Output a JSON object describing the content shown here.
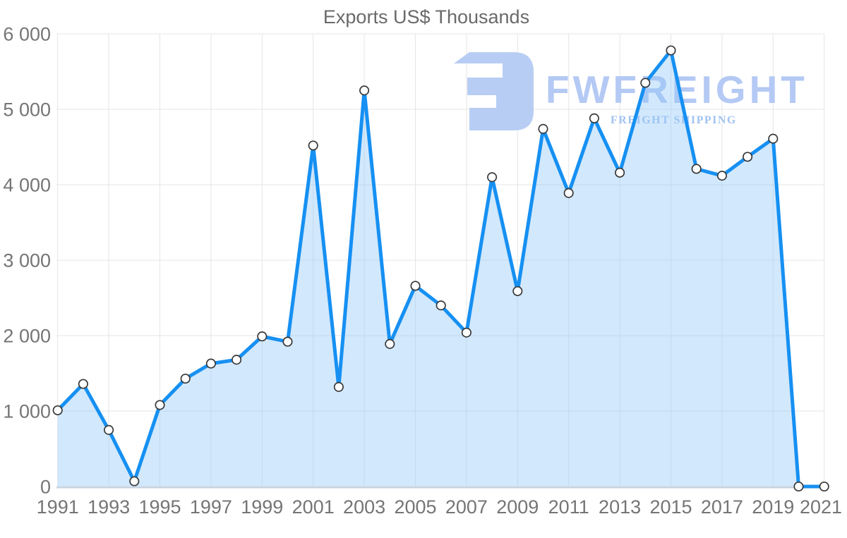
{
  "chart_data": {
    "type": "line",
    "title": "Exports US$ Thousands",
    "xlabel": "",
    "ylabel": "",
    "x": [
      1991,
      1992,
      1993,
      1994,
      1995,
      1996,
      1997,
      1998,
      1999,
      2000,
      2001,
      2002,
      2003,
      2004,
      2005,
      2006,
      2007,
      2008,
      2009,
      2010,
      2011,
      2012,
      2013,
      2014,
      2015,
      2016,
      2017,
      2018,
      2019,
      2020,
      2021
    ],
    "values": [
      1010,
      1360,
      750,
      70,
      1080,
      1430,
      1630,
      1680,
      1990,
      1920,
      4520,
      1320,
      5250,
      1890,
      2660,
      2400,
      2040,
      4100,
      2590,
      4740,
      3890,
      4880,
      4160,
      5350,
      5780,
      4210,
      4120,
      4370,
      4610,
      0,
      0
    ],
    "series_name": "Exports US$ Thousands",
    "x_tick_labels": [
      "1991",
      "1993",
      "1995",
      "1997",
      "1999",
      "2001",
      "2003",
      "2005",
      "2007",
      "2009",
      "2011",
      "2013",
      "2015",
      "2017",
      "2019",
      "2021"
    ],
    "y_ticks": [
      0,
      1000,
      2000,
      3000,
      4000,
      5000,
      6000
    ],
    "y_tick_labels": [
      "0",
      "1 000",
      "2 000",
      "3 000",
      "4 000",
      "5 000",
      "6 000"
    ],
    "ylim": [
      0,
      6000
    ],
    "xlim": [
      1991,
      2021
    ],
    "grid": "on",
    "legend": "none",
    "marker": "circle",
    "area_fill": true
  },
  "watermark": {
    "brand": "FWFREIGHT",
    "tagline": "FREIGHT SHIPPING"
  },
  "colors": {
    "line": "#1690f2",
    "area": "rgba(147,199,247,0.42)",
    "marker_fill": "#ffffff",
    "marker_stroke": "#383838",
    "grid": "#e5e5e5",
    "axis_line": "#c3d0e0",
    "label": "#757575",
    "title": "#6a6a6a",
    "watermark_logo": "#b7cdf3",
    "watermark_brand": "#b4c9f4",
    "watermark_tagline": "#a2c3f1"
  }
}
